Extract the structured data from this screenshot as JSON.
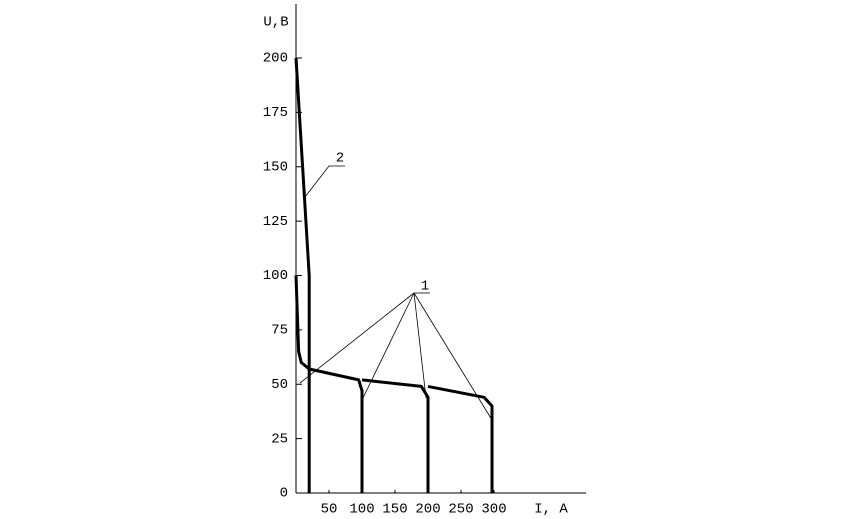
{
  "chart_data": {
    "type": "line",
    "y_label": "U,B",
    "x_label": "I, A",
    "xlim": [
      0,
      440
    ],
    "ylim": [
      0,
      225
    ],
    "xticks": [
      50,
      100,
      150,
      200,
      250,
      300
    ],
    "yticks": [
      0,
      25,
      50,
      75,
      100,
      125,
      150,
      175,
      200
    ],
    "annotations": [
      "2",
      "1"
    ],
    "series": [
      {
        "color": "#000000",
        "x": [
          0,
          20,
          20
        ],
        "values": [
          200,
          100,
          0
        ]
      },
      {
        "color": "#000000",
        "x": [
          0,
          4,
          8,
          20,
          95,
          100,
          100
        ],
        "values": [
          100,
          65,
          60,
          57,
          52,
          47,
          0
        ]
      },
      {
        "color": "#000000",
        "x": [
          100,
          190,
          200,
          200
        ],
        "values": [
          52,
          49,
          44,
          0
        ]
      },
      {
        "color": "#000000",
        "x": [
          200,
          285,
          297,
          297
        ],
        "values": [
          49,
          44,
          40,
          0
        ]
      }
    ]
  }
}
